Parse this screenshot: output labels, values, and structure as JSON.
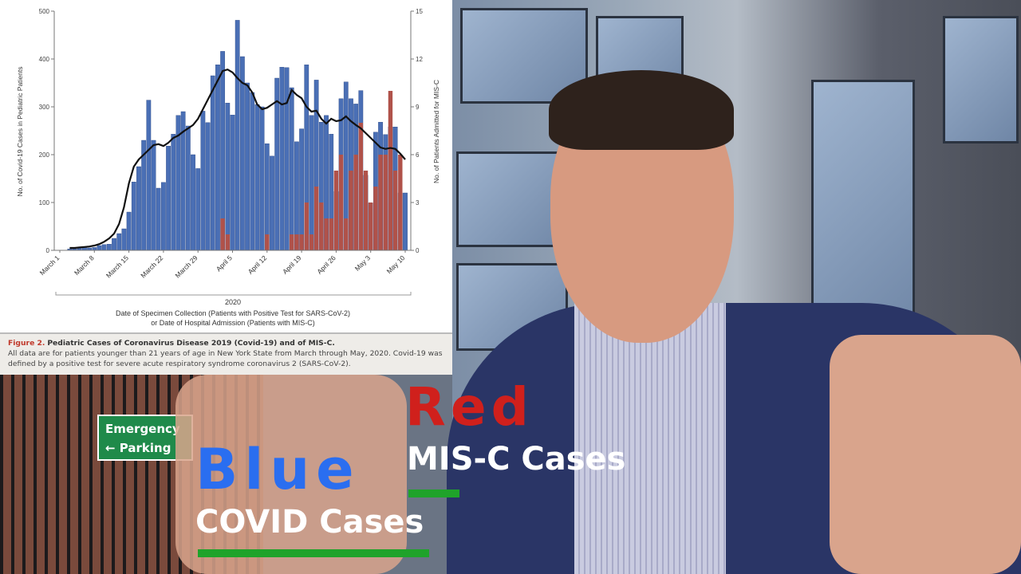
{
  "chart_data": {
    "type": "bar",
    "y_left_label": "No. of Covid-19 Cases in Pediatric Patients",
    "y_right_label": "No. of Patients Admitted for MIS-C",
    "y_left_ticks": [
      "0",
      "100",
      "200",
      "300",
      "400",
      "500"
    ],
    "y_right_ticks": [
      "0",
      "3",
      "6",
      "9",
      "12",
      "15"
    ],
    "ylim_left": [
      0,
      500
    ],
    "ylim_right": [
      0,
      15
    ],
    "x_ticks": [
      "March 1",
      "March 8",
      "March 15",
      "March 22",
      "March 29",
      "April 5",
      "April 12",
      "April 19",
      "April 26",
      "May 3",
      "May 10"
    ],
    "x_year": "2020",
    "xlabel_line1": "Date of Specimen Collection (Patients with Positive Test for SARS-CoV-2)",
    "xlabel_line2": "or Date of Hospital Admission (Patients with MIS-C)",
    "x_start": "2020-03-01",
    "x_end": "2020-05-10",
    "series": [
      {
        "axis": "left",
        "color": "#4a6fb5",
        "first_day": "2020-03-03",
        "values": [
          3,
          3,
          5,
          8,
          5,
          6,
          10,
          12,
          13,
          25,
          35,
          45,
          80,
          143,
          175,
          230,
          314,
          230,
          130,
          142,
          218,
          243,
          282,
          290,
          260,
          200,
          171,
          291,
          267,
          365,
          388,
          416,
          308,
          283,
          481,
          405,
          350,
          330,
          305,
          300,
          223,
          197,
          360,
          383,
          382,
          340,
          227,
          254,
          388,
          282,
          356,
          268,
          282,
          243,
          123,
          317,
          352,
          317,
          306,
          334,
          157,
          99,
          247,
          268,
          242,
          258,
          258,
          120,
          120
        ]
      },
      {
        "axis": "right",
        "color": "#b0524a",
        "first_day": "2020-03-03",
        "values": [
          0,
          0,
          0,
          0,
          0,
          0,
          0,
          0,
          0,
          0,
          0,
          0,
          0,
          0,
          0,
          0,
          0,
          0,
          0,
          0,
          0,
          0,
          0,
          0,
          0,
          0,
          0,
          0,
          0,
          0,
          0,
          2,
          1,
          0,
          0,
          0,
          0,
          0,
          0,
          0,
          1,
          0,
          0,
          0,
          0,
          1,
          1,
          1,
          3,
          1,
          4,
          3,
          2,
          2,
          5,
          6,
          2,
          5,
          6,
          8,
          5,
          3,
          4,
          6,
          6,
          10,
          5,
          6,
          0
        ]
      },
      {
        "axis": "left",
        "type": "line",
        "color": "#111111",
        "first_day": "2020-03-03",
        "values": [
          5,
          5,
          6,
          7,
          8,
          10,
          13,
          18,
          25,
          35,
          55,
          90,
          140,
          175,
          190,
          200,
          210,
          220,
          222,
          218,
          225,
          235,
          240,
          248,
          255,
          262,
          275,
          295,
          315,
          335,
          355,
          375,
          378,
          372,
          360,
          350,
          345,
          330,
          305,
          295,
          298,
          305,
          312,
          305,
          308,
          335,
          325,
          318,
          300,
          290,
          292,
          275,
          265,
          275,
          270,
          272,
          280,
          270,
          262,
          255,
          245,
          235,
          225,
          215,
          212,
          214,
          212,
          202,
          190
        ]
      }
    ]
  },
  "caption": {
    "figure_label": "Figure 2.",
    "title": "Pediatric Cases of Coronavirus Disease 2019 (Covid-19) and of MIS-C.",
    "body": "All data are for patients younger than 21 years of age in New York State from March through May, 2020. Covid-19 was defined by a positive test for severe acute respiratory syndrome coronavirus 2 (SARS-CoV-2)."
  },
  "background": {
    "sign_line1": "Emergency",
    "sign_line2": "← Parking"
  },
  "overlay": {
    "red_word": "Red",
    "red_color": "#d0201c",
    "red_desc": "MIS-C Cases",
    "blue_word": "Blue",
    "blue_color": "#2a6ef0",
    "blue_desc": "COVID Cases",
    "underline_color": "#1fa32a"
  }
}
